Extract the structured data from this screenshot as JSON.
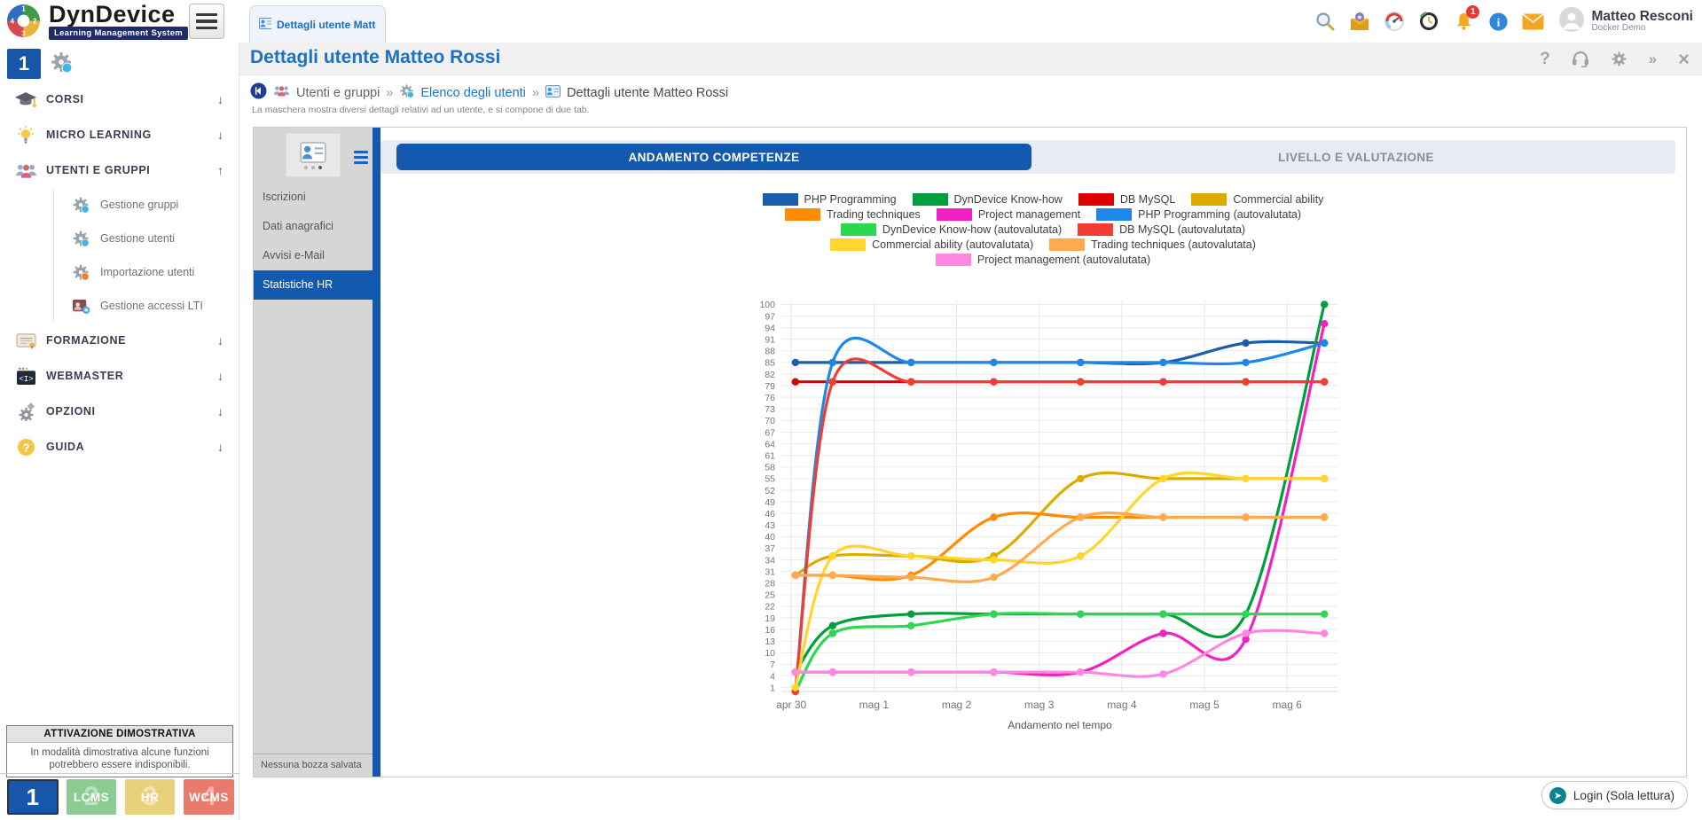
{
  "header": {
    "logo": {
      "title": "DynDevice",
      "subtitle": "Learning Management System",
      "wheel_numbers": [
        "1",
        "2",
        "3",
        "4"
      ]
    },
    "document_tab": {
      "label": "Dettagli utente Matte..."
    },
    "notifications_badge": "1",
    "user": {
      "name": "Matteo Resconi",
      "role": "Docker Demo"
    }
  },
  "sidebar": {
    "instance_label": "1",
    "menu": [
      {
        "label": "CORSI",
        "icon": "graduation-cap",
        "arrow": "down"
      },
      {
        "label": "MICRO LEARNING",
        "icon": "lightbulb",
        "arrow": "down"
      },
      {
        "label": "UTENTI E GRUPPI",
        "icon": "users-group",
        "arrow": "up",
        "children": [
          {
            "label": "Gestione gruppi",
            "icon": "gear-group"
          },
          {
            "label": "Gestione utenti",
            "icon": "gear-user"
          },
          {
            "label": "Importazione utenti",
            "icon": "gear-import"
          },
          {
            "label": "Gestione accessi LTI",
            "icon": "lti-access"
          }
        ]
      },
      {
        "label": "FORMAZIONE",
        "icon": "certificate",
        "arrow": "down"
      },
      {
        "label": "WEBMASTER",
        "icon": "code",
        "arrow": "down"
      },
      {
        "label": "OPZIONI",
        "icon": "gears",
        "arrow": "down"
      },
      {
        "label": "GUIDA",
        "icon": "question",
        "arrow": "down"
      }
    ],
    "demo_notice": {
      "title": "ATTIVAZIONE DIMOSTRATIVA",
      "text": "In modalità dimostrativa alcune funzioni potrebbero essere indisponibili."
    },
    "products": [
      {
        "label": "1",
        "ghost": "",
        "color": "#1756a9",
        "selected": true
      },
      {
        "label": "LCMS",
        "ghost": "2",
        "color": "#8ccb92",
        "selected": false
      },
      {
        "label": "HR",
        "ghost": "3",
        "color": "#e9d07b",
        "selected": false
      },
      {
        "label": "WCMS",
        "ghost": "4",
        "color": "#ea7a6e",
        "selected": false
      }
    ]
  },
  "page": {
    "title": "Dettagli utente Matteo Rossi",
    "breadcrumb": [
      {
        "label": "Utenti e gruppi"
      },
      {
        "label": "Elenco degli utenti"
      },
      {
        "label": "Dettagli utente Matteo Rossi"
      }
    ],
    "separator": "»",
    "description": "La maschera mostra diversi dettagli relativi ad un utente, e si compone di due tab."
  },
  "detail_panel": {
    "nav": [
      {
        "label": "Iscrizioni",
        "active": false
      },
      {
        "label": "Dati anagrafici",
        "active": false
      },
      {
        "label": "Avvisi e-Mail",
        "active": false
      },
      {
        "label": "Statistiche HR",
        "active": true
      }
    ],
    "draft_status": "Nessuna bozza salvata",
    "tabs": [
      {
        "label": "ANDAMENTO COMPETENZE",
        "active": true
      },
      {
        "label": "LIVELLO E VALUTAZIONE",
        "active": false
      }
    ]
  },
  "chart_data": {
    "type": "line",
    "xlabel": "Andamento nel tempo",
    "x_tick_labels": [
      "apr 30",
      "mag 1",
      "mag 2",
      "mag 3",
      "mag 4",
      "mag 5",
      "mag 6"
    ],
    "x_tick_positions": [
      0,
      1,
      2,
      3,
      4,
      5,
      6
    ],
    "xlim": [
      -0.12,
      6.62
    ],
    "ylim": [
      0,
      101
    ],
    "grid": true,
    "legend_position": "top",
    "y_ticks": [
      1,
      4,
      7,
      10,
      13,
      16,
      19,
      22,
      25,
      28,
      31,
      34,
      37,
      40,
      43,
      46,
      49,
      52,
      55,
      58,
      61,
      64,
      67,
      70,
      73,
      76,
      79,
      82,
      85,
      88,
      91,
      94,
      97,
      100
    ],
    "x_points": [
      0.05,
      0.5,
      1.45,
      2.45,
      3.5,
      4.5,
      5.5,
      6.45
    ],
    "series": [
      {
        "name": "PHP Programming",
        "color": "#1a5dab",
        "values": [
          85,
          85,
          85,
          85,
          85,
          85,
          90,
          90
        ]
      },
      {
        "name": "DynDevice Know-how",
        "color": "#009e3c",
        "values": [
          5,
          17,
          20,
          20,
          20,
          20,
          20,
          100
        ]
      },
      {
        "name": "DB MySQL",
        "color": "#dd0000",
        "values": [
          80,
          80,
          80,
          80,
          80,
          80,
          80,
          80
        ]
      },
      {
        "name": "Commercial ability",
        "color": "#ddab00",
        "values": [
          30,
          35,
          35,
          35,
          55,
          55,
          55,
          55
        ]
      },
      {
        "name": "Trading techniques",
        "color": "#ff8c00",
        "values": [
          30,
          30,
          30,
          45,
          45,
          45,
          45,
          45
        ]
      },
      {
        "name": "Project management",
        "color": "#f320c3",
        "values": [
          5,
          5,
          5,
          5,
          5,
          15,
          13.5,
          95
        ]
      },
      {
        "name": "PHP Programming (autovalutata)",
        "color": "#1e88e8",
        "values": [
          0,
          85,
          85,
          85,
          85,
          85,
          85,
          90
        ]
      },
      {
        "name": "DynDevice Know-how (autovalutata)",
        "color": "#2bd850",
        "values": [
          0,
          15,
          17,
          20,
          20,
          20,
          20,
          20
        ]
      },
      {
        "name": "DB MySQL (autovalutata)",
        "color": "#f23d33",
        "values": [
          0,
          80,
          80,
          80,
          80,
          80,
          80,
          80
        ]
      },
      {
        "name": "Commercial ability (autovalutata)",
        "color": "#ffd52e",
        "values": [
          1,
          35,
          35,
          34,
          35,
          55,
          55,
          55
        ]
      },
      {
        "name": "Trading techniques (autovalutata)",
        "color": "#ffaa50",
        "values": [
          30,
          30,
          29.5,
          29.5,
          45,
          45,
          45,
          45
        ]
      },
      {
        "name": "Project management (autovalutata)",
        "color": "#ff87e0",
        "values": [
          5,
          5,
          5,
          5,
          5,
          4.5,
          15,
          15
        ]
      }
    ],
    "legend_rows": [
      [
        0,
        1,
        2,
        3
      ],
      [
        4,
        5,
        6
      ],
      [
        7,
        8
      ],
      [
        9,
        10
      ],
      [
        11
      ]
    ]
  },
  "footer": {
    "login_label": "Login (Sola lettura)"
  }
}
